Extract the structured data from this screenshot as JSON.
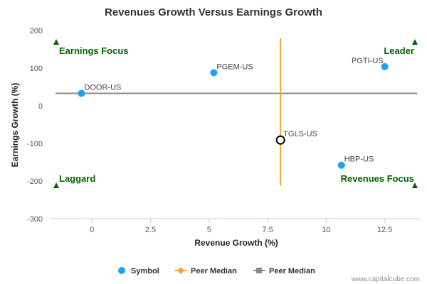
{
  "chart_data": {
    "type": "scatter",
    "title": "Revenues Growth Versus Earnings Growth",
    "xlabel": "Revenue Growth (%)",
    "ylabel": "Earnings Growth (%)",
    "xlim": [
      -1.8,
      14.0
    ],
    "ylim": [
      -300,
      200
    ],
    "x_ticks": [
      0,
      2.5,
      5,
      7.5,
      10,
      12.5
    ],
    "x_tick_labels": [
      "0",
      "2.5",
      "5",
      "7.5",
      "10",
      "12.5"
    ],
    "y_ticks": [
      200,
      100,
      0,
      -100,
      -200,
      -300
    ],
    "y_tick_labels": [
      "200",
      "100",
      "0",
      "-100",
      "-200",
      "-300"
    ],
    "grid": false,
    "points": [
      {
        "label": "DOOR-US",
        "x": -0.45,
        "y": 33
      },
      {
        "label": "PGEM-US",
        "x": 5.2,
        "y": 88
      },
      {
        "label": "PGTI-US",
        "x": 12.5,
        "y": 104
      },
      {
        "label": "HBP-US",
        "x": 10.65,
        "y": -158
      },
      {
        "label": "TGLS-US",
        "x": 8.05,
        "y": -91,
        "highlight": true
      }
    ],
    "peer_median_revenue": 8.05,
    "peer_median_earnings": 33,
    "quadrant_labels": [
      "Earnings Focus",
      "Leader",
      "Laggard",
      "Revenues Focus"
    ],
    "legend": {
      "placement": "bottom",
      "items": [
        {
          "label": "Symbol",
          "color": "#1ea1f1"
        },
        {
          "label": "Peer Median",
          "color": "#f5a623"
        },
        {
          "label": "Peer Median",
          "color": "#8a8a8a"
        }
      ]
    },
    "credit": "www.capitalcube.com"
  },
  "colors": {
    "point": "#1ea1f1",
    "vertical_median": "#f5a623",
    "horizontal_median": "#8a8a8a",
    "quadrant_text": "#006400",
    "axis": "#c0d0e0"
  }
}
